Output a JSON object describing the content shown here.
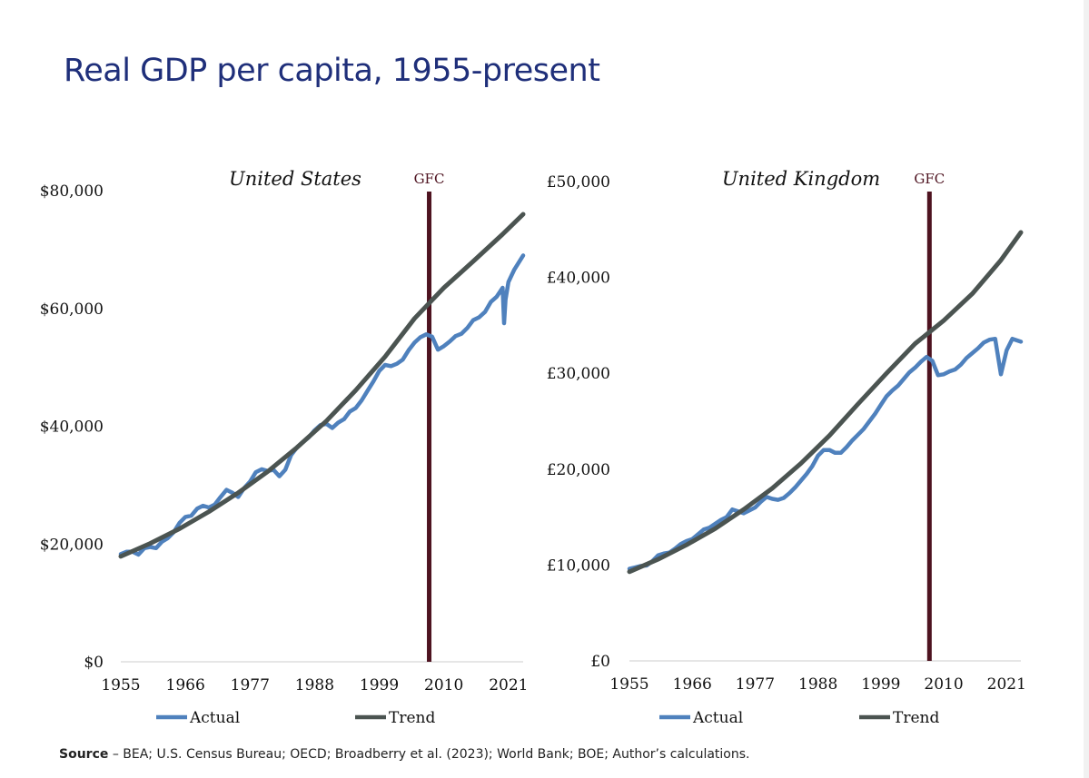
{
  "page_title": "Real GDP per capita, 1955-present",
  "source": {
    "label": "Source",
    "text": " – BEA; U.S. Census Bureau; OECD; Broadberry et al. (2023); World Bank; BOE; Author’s calculations."
  },
  "colors": {
    "actual": "#4f81bd",
    "trend": "#4b5451",
    "gfc": "#4e1320",
    "axis": "#cccccc",
    "title": "#1f2f7a"
  },
  "chart_data": [
    {
      "type": "line",
      "title": "United States",
      "ylim": [
        0,
        80000
      ],
      "yticks": [
        0,
        20000,
        40000,
        60000,
        80000
      ],
      "ytick_labels": [
        "$0",
        "$20,000",
        "$40,000",
        "$60,000",
        "$80,000"
      ],
      "xlim": [
        1955,
        2023.5
      ],
      "xticks": [
        1955,
        1966,
        1977,
        1988,
        1999,
        2010,
        2021
      ],
      "xtick_labels": [
        "1955",
        "1966",
        "1977",
        "1988",
        "1999",
        "2010",
        "2021"
      ],
      "legend": "bottom",
      "annotations": [
        {
          "label": "GFC",
          "x": 2007.5
        }
      ],
      "series": [
        {
          "name": "Actual",
          "x": [
            1955,
            1956,
            1957,
            1958,
            1959,
            1960,
            1961,
            1962,
            1963,
            1964,
            1965,
            1966,
            1967,
            1968,
            1969,
            1970,
            1971,
            1972,
            1973,
            1974,
            1975,
            1976,
            1977,
            1978,
            1979,
            1980,
            1981,
            1982,
            1983,
            1984,
            1985,
            1986,
            1987,
            1988,
            1989,
            1990,
            1991,
            1992,
            1993,
            1994,
            1995,
            1996,
            1997,
            1998,
            1999,
            2000,
            2001,
            2002,
            2003,
            2004,
            2005,
            2006,
            2007,
            2008,
            2009,
            2010,
            2011,
            2012,
            2013,
            2014,
            2015,
            2016,
            2017,
            2018,
            2019,
            2020,
            2020.25,
            2020.5,
            2021,
            2022,
            2023.5
          ],
          "y": [
            18300,
            18700,
            18700,
            18200,
            19300,
            19500,
            19300,
            20400,
            21000,
            22000,
            23600,
            24600,
            24800,
            26000,
            26500,
            26200,
            26700,
            28000,
            29200,
            28700,
            28000,
            29500,
            30600,
            32200,
            32700,
            32400,
            32600,
            31500,
            32600,
            35100,
            36400,
            37300,
            38100,
            39300,
            40200,
            40400,
            39700,
            40600,
            41200,
            42500,
            43100,
            44400,
            46000,
            47600,
            49400,
            50400,
            50200,
            50600,
            51300,
            52900,
            54200,
            55100,
            55600,
            55200,
            53000,
            53600,
            54400,
            55300,
            55700,
            56700,
            58000,
            58500,
            59400,
            61100,
            62000,
            63500,
            57500,
            61500,
            64500,
            66600,
            69000
          ]
        },
        {
          "name": "Trend",
          "x": [
            1955,
            1960,
            1965,
            1970,
            1975,
            1980,
            1985,
            1990,
            1995,
            2000,
            2005,
            2010,
            2015,
            2020,
            2023.5
          ],
          "y": [
            17900,
            20100,
            22600,
            25500,
            28700,
            32300,
            36400,
            40900,
            46100,
            51800,
            58300,
            63500,
            68000,
            72600,
            76000
          ]
        }
      ]
    },
    {
      "type": "line",
      "title": "United Kingdom",
      "ylim": [
        0,
        50000
      ],
      "yticks": [
        0,
        10000,
        20000,
        30000,
        40000,
        50000
      ],
      "ytick_labels": [
        "£0",
        "£10,000",
        "£20,000",
        "£30,000",
        "£40,000",
        "£50,000"
      ],
      "xlim": [
        1955,
        2023.5
      ],
      "xticks": [
        1955,
        1966,
        1977,
        1988,
        1999,
        2010,
        2021
      ],
      "xtick_labels": [
        "1955",
        "1966",
        "1977",
        "1988",
        "1999",
        "2010",
        "2021"
      ],
      "legend": "bottom",
      "annotations": [
        {
          "label": "GFC",
          "x": 2007.5
        }
      ],
      "series": [
        {
          "name": "Actual",
          "x": [
            1955,
            1956,
            1957,
            1958,
            1959,
            1960,
            1961,
            1962,
            1963,
            1964,
            1965,
            1966,
            1967,
            1968,
            1969,
            1970,
            1971,
            1972,
            1973,
            1974,
            1975,
            1976,
            1977,
            1978,
            1979,
            1980,
            1981,
            1982,
            1983,
            1984,
            1985,
            1986,
            1987,
            1988,
            1989,
            1990,
            1991,
            1992,
            1993,
            1994,
            1995,
            1996,
            1997,
            1998,
            1999,
            2000,
            2001,
            2002,
            2003,
            2004,
            2005,
            2006,
            2007,
            2008,
            2009,
            2010,
            2011,
            2012,
            2013,
            2014,
            2015,
            2016,
            2017,
            2018,
            2019,
            2020,
            2021,
            2022,
            2023.5
          ],
          "y": [
            9600,
            9750,
            9900,
            9950,
            10400,
            11000,
            11200,
            11300,
            11700,
            12200,
            12500,
            12700,
            13200,
            13700,
            13900,
            14300,
            14700,
            15000,
            15800,
            15600,
            15400,
            15700,
            16000,
            16600,
            17100,
            16900,
            16800,
            17000,
            17500,
            18100,
            18800,
            19500,
            20300,
            21400,
            22000,
            22000,
            21700,
            21700,
            22300,
            23000,
            23600,
            24200,
            25000,
            25800,
            26700,
            27600,
            28200,
            28700,
            29400,
            30100,
            30600,
            31200,
            31700,
            31300,
            29800,
            29900,
            30200,
            30400,
            30900,
            31600,
            32100,
            32600,
            33200,
            33500,
            33600,
            29900,
            32400,
            33600,
            33300
          ]
        },
        {
          "name": "Trend",
          "x": [
            1955,
            1960,
            1965,
            1970,
            1975,
            1980,
            1985,
            1990,
            1995,
            2000,
            2005,
            2010,
            2015,
            2020,
            2023.5
          ],
          "y": [
            9300,
            10600,
            12100,
            13800,
            15800,
            18000,
            20600,
            23500,
            26800,
            30000,
            33100,
            35500,
            38300,
            41800,
            44700
          ]
        }
      ]
    }
  ]
}
